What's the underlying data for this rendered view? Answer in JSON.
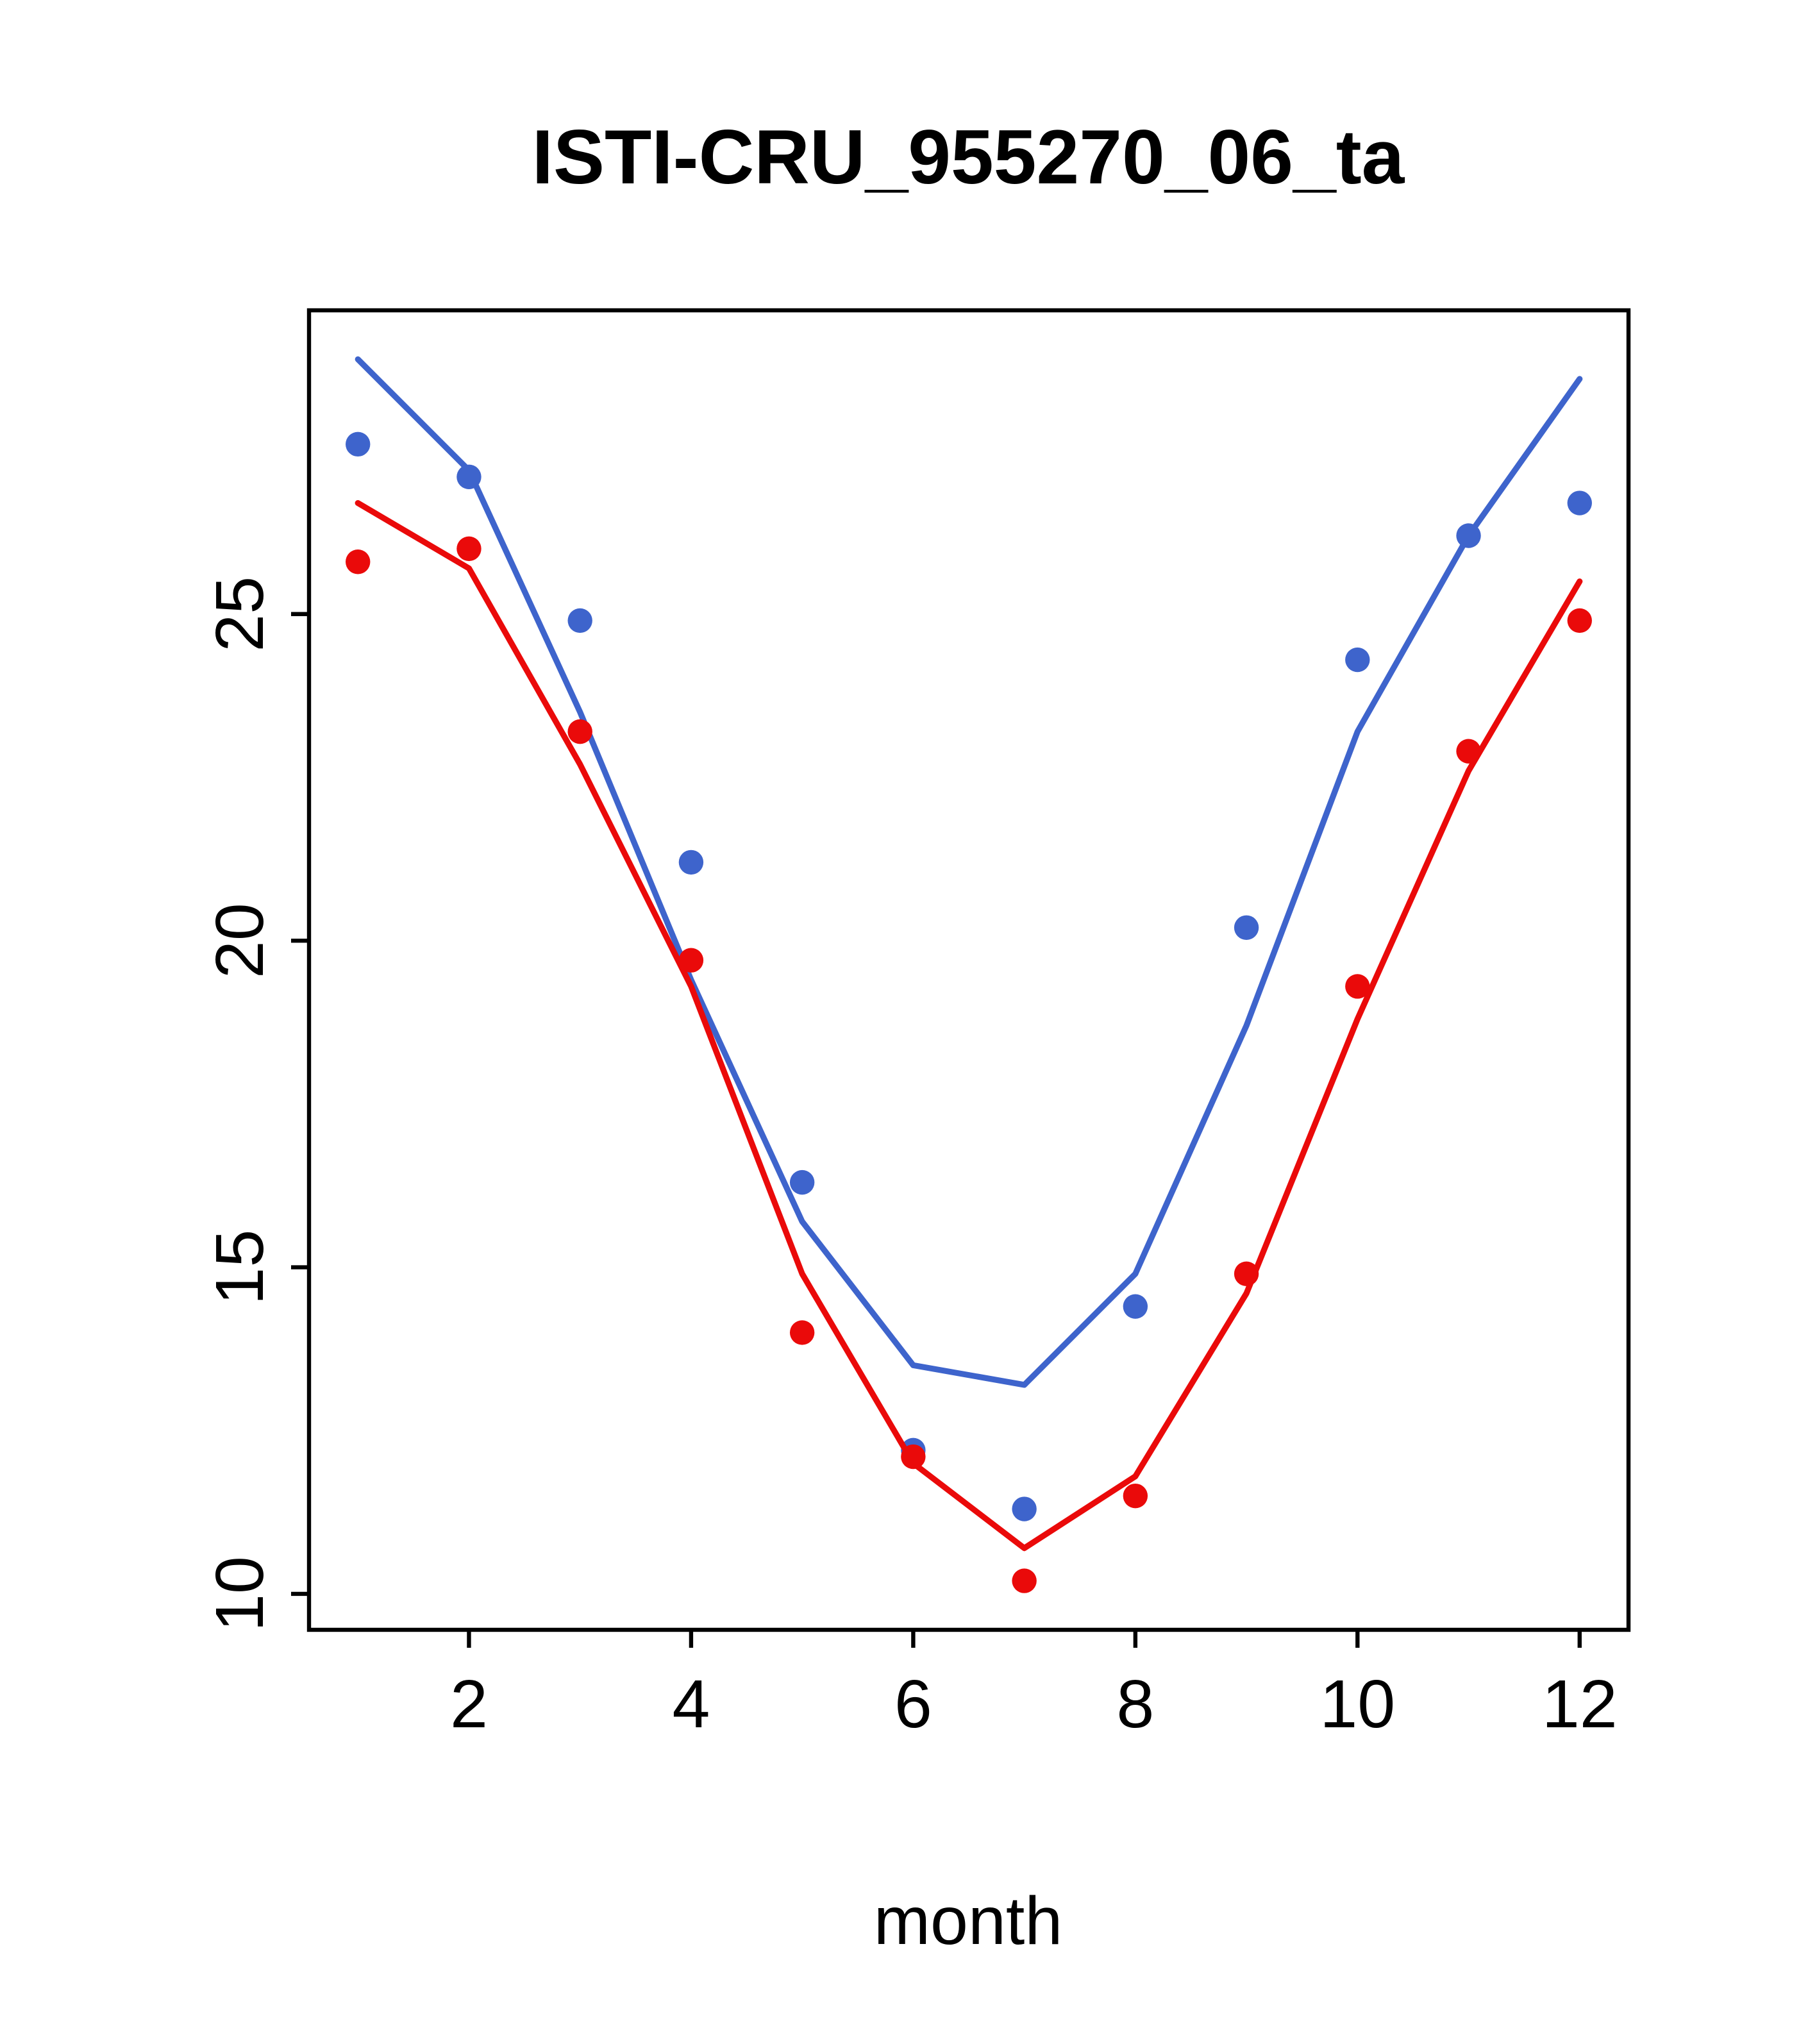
{
  "chart_data": {
    "type": "line",
    "title": "ISTI-CRU_955270_06_ta",
    "xlabel": "month",
    "ylabel": "",
    "xlim": [
      0.56,
      12.44
    ],
    "ylim": [
      9.45,
      29.65
    ],
    "x_ticks": [
      2,
      4,
      6,
      8,
      10,
      12
    ],
    "y_ticks": [
      10,
      15,
      20,
      25
    ],
    "grid": false,
    "legend": "none",
    "x": [
      1,
      2,
      3,
      4,
      5,
      6,
      7,
      8,
      9,
      10,
      11,
      12
    ],
    "series": [
      {
        "name": "blue-line",
        "style": "line",
        "color": "#3E64CC",
        "values": [
          28.9,
          27.2,
          23.5,
          19.4,
          15.7,
          13.5,
          13.2,
          14.9,
          18.7,
          23.2,
          26.2,
          28.6
        ]
      },
      {
        "name": "blue-points",
        "style": "points",
        "color": "#3E64CC",
        "values": [
          27.6,
          27.1,
          24.9,
          21.2,
          16.3,
          12.2,
          11.3,
          14.4,
          20.2,
          24.3,
          26.2,
          26.7
        ]
      },
      {
        "name": "red-line",
        "style": "line",
        "color": "#EA0A0A",
        "values": [
          26.7,
          25.7,
          22.7,
          19.3,
          14.9,
          12.0,
          10.7,
          11.8,
          14.6,
          18.8,
          22.6,
          25.5
        ]
      },
      {
        "name": "red-points",
        "style": "points",
        "color": "#EA0A0A",
        "values": [
          25.8,
          26.0,
          23.2,
          19.7,
          14.0,
          12.1,
          10.2,
          11.5,
          14.9,
          19.3,
          22.9,
          24.9
        ]
      }
    ]
  }
}
